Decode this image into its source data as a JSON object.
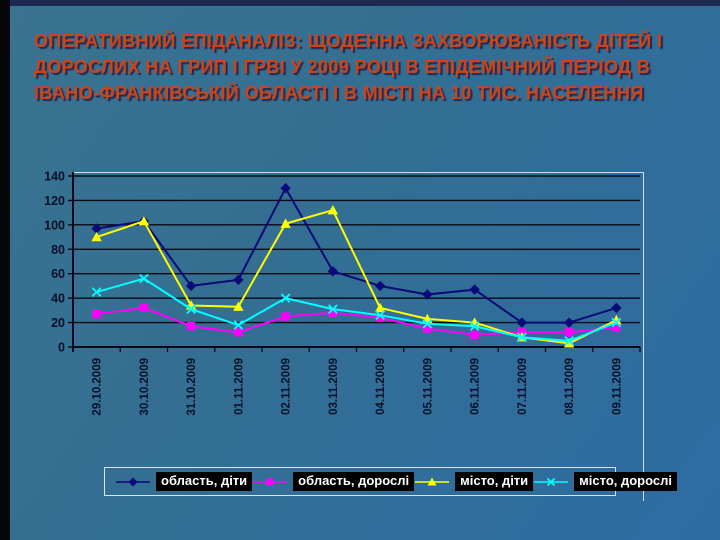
{
  "slide": {
    "title_lines": [
      "ОПЕРАТИВНИЙ ЕПІДАНАЛІЗ: ЩОДЕННА ЗАХВОРЮВАНІСТЬ ДІТЕЙ І",
      "ДОРОСЛИХ НА ГРИП І ГРВІ У 2009 РОЦІ В ЕПІДЕМІЧНИЙ ПЕРІОД В",
      "ІВАНО-ФРАНКІВСЬКІЙ ОБЛАСТІ І В МІСТІ НА 10 ТИС. НАСЕЛЕННЯ"
    ],
    "title_color": "#cc4418",
    "background_color": "#336e93"
  },
  "chart_data": {
    "type": "line",
    "title": "",
    "xlabel": "",
    "ylabel": "",
    "ylim": [
      0,
      140
    ],
    "ytick_step": 20,
    "grid": "horizontal",
    "gridline_color": "#0a0a14",
    "axis_text_color": "#0b1026",
    "legend_position": "bottom",
    "categories": [
      "29.10.2009",
      "30.10.2009",
      "31.10.2009",
      "01.11.2009",
      "02.11.2009",
      "03.11.2009",
      "04.11.2009",
      "05.11.2009",
      "06.11.2009",
      "07.11.2009",
      "08.11.2009",
      "09.11.2009"
    ],
    "series": [
      {
        "name": "область, діти",
        "color": "#0a0a78",
        "marker": "diamond",
        "values": [
          97,
          103,
          50,
          55,
          130,
          62,
          50,
          43,
          47,
          20,
          20,
          32
        ]
      },
      {
        "name": "область, дорослі",
        "color": "#ff00ff",
        "marker": "square",
        "values": [
          27,
          32,
          17,
          12,
          25,
          28,
          24,
          15,
          10,
          12,
          12,
          16
        ]
      },
      {
        "name": "місто, діти",
        "color": "#ffff00",
        "marker": "triangle",
        "values": [
          90,
          103,
          34,
          33,
          101,
          112,
          32,
          23,
          20,
          8,
          3,
          22
        ]
      },
      {
        "name": "місто, дорослі",
        "color": "#00ffff",
        "marker": "x",
        "values": [
          45,
          56,
          31,
          18,
          40,
          31,
          26,
          19,
          17,
          8,
          5,
          20
        ]
      }
    ]
  }
}
